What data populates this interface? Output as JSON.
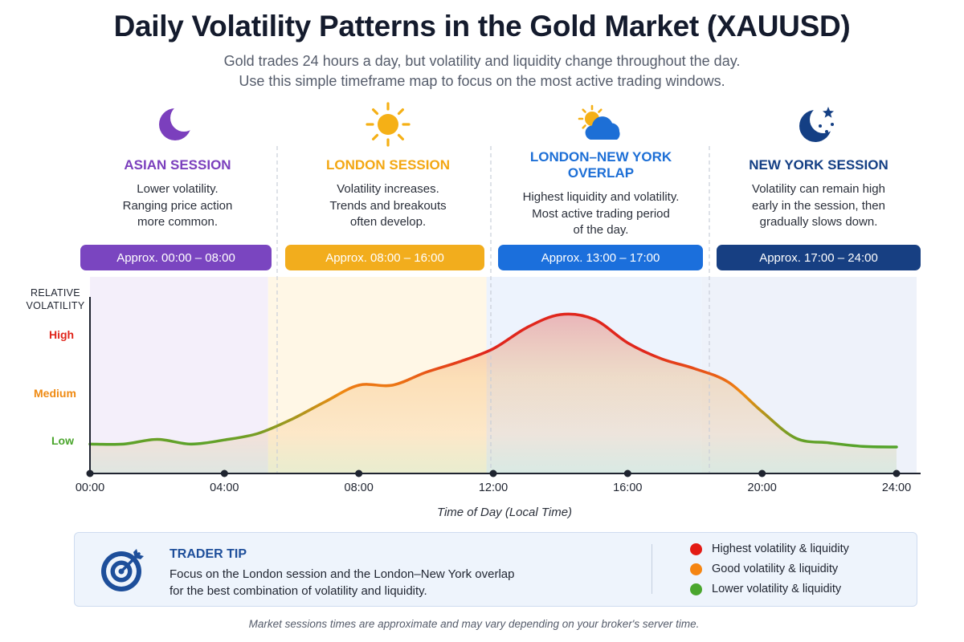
{
  "title": "Daily Volatility Patterns in the Gold Market (XAUUSD)",
  "subtitle_lines": [
    "Gold trades 24 hours a day, but volatility and liquidity change throughout the day.",
    "Use this simple timeframe map to focus on the most active trading windows."
  ],
  "sessions": [
    {
      "name": "ASIAN SESSION",
      "icon": "moon-icon",
      "color": "#7b3fbd",
      "desc": [
        "Lower volatility.",
        "Ranging price action",
        "more common."
      ],
      "time": "Approx. 00:00 – 08:00",
      "pill_color": "#7a45c0"
    },
    {
      "name": "LONDON SESSION",
      "icon": "sun-icon",
      "color": "#f3a712",
      "desc": [
        "Volatility increases.",
        "Trends and breakouts",
        "often develop."
      ],
      "time": "Approx. 08:00 – 16:00",
      "pill_color": "#f2ad1d"
    },
    {
      "name": "LONDON–NEW YORK OVERLAP",
      "icon": "sun-cloud-icon",
      "color": "#1d6fd6",
      "desc": [
        "Highest liquidity and volatility.",
        "Most active trading period",
        "of the day."
      ],
      "time": "Approx. 13:00 – 17:00",
      "pill_color": "#1b6fdc"
    },
    {
      "name": "NEW YORK SESSION",
      "icon": "moon-stars-icon",
      "color": "#143f84",
      "desc": [
        "Volatility can remain high",
        "early in the session, then",
        "gradually slows down."
      ],
      "time": "Approx. 17:00 – 24:00",
      "pill_color": "#173f82"
    }
  ],
  "chart_data": {
    "type": "area",
    "ylabel_lines": [
      "RELATIVE",
      "VOLATILITY"
    ],
    "xlabel": "Time of Day (Local Time)",
    "y_levels": [
      {
        "label": "High",
        "value": 3,
        "color": "#e0261c"
      },
      {
        "label": "Medium",
        "value": 2,
        "color": "#ef8a12"
      },
      {
        "label": "Low",
        "value": 1,
        "color": "#4aa52c"
      }
    ],
    "xlim": [
      0,
      24
    ],
    "ylim": [
      0.5,
      3.5
    ],
    "x_ticks": [
      "00:00",
      "04:00",
      "08:00",
      "12:00",
      "16:00",
      "20:00",
      "24:00"
    ],
    "x_tick_values": [
      0,
      4,
      8,
      12,
      16,
      20,
      24
    ],
    "series": [
      {
        "x": [
          0,
          1,
          2,
          3,
          4,
          5,
          6,
          7,
          8,
          9,
          10,
          11,
          12,
          13,
          14,
          15,
          16,
          17,
          18,
          19,
          20,
          21,
          22,
          23,
          24
        ],
        "values": [
          1.0,
          1.0,
          1.08,
          1.0,
          1.07,
          1.18,
          1.42,
          1.72,
          2.0,
          2.0,
          2.22,
          2.4,
          2.62,
          2.98,
          3.2,
          3.12,
          2.72,
          2.45,
          2.28,
          2.05,
          1.55,
          1.1,
          1.02,
          0.96,
          0.95
        ]
      }
    ],
    "colors": {
      "high": "#e0261c",
      "medium": "#ef8a12",
      "low": "#4aa52c"
    }
  },
  "tip": {
    "title": "TRADER TIP",
    "lines": [
      "Focus on the London session and the London–New York overlap",
      "for the best combination of volatility and liquidity."
    ],
    "icon": "target-icon",
    "legend": [
      {
        "label": "Highest volatility & liquidity",
        "color": "#e31b14"
      },
      {
        "label": "Good volatility & liquidity",
        "color": "#f58512"
      },
      {
        "label": "Lower volatility & liquidity",
        "color": "#4aa62e"
      }
    ]
  },
  "footnote": "Market sessions times are approximate and may vary depending on your broker's server time."
}
